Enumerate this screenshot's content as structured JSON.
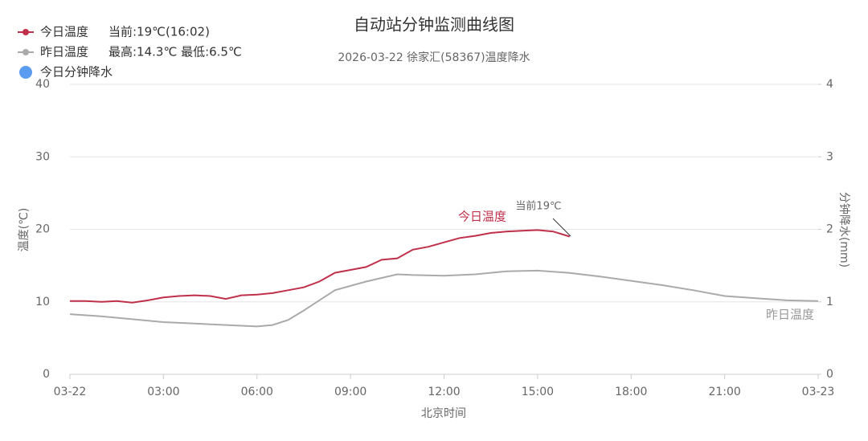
{
  "chart_data": {
    "type": "line",
    "title": "自动站分钟监测曲线图",
    "subtitle": "2026-03-22 徐家汇(58367)温度降水",
    "x_label": "北京时间",
    "y_label": "温度(℃)",
    "y2_label": "分钟降水(mm)",
    "legend_notes": [
      "当前:19℃(16:02)",
      "最高:14.3℃ 最低:6.5℃"
    ],
    "annotations": [
      "今日温度",
      "当前19℃",
      "昨日温度"
    ],
    "xlim": [
      0,
      24
    ],
    "xticks": [
      {
        "value": 0,
        "label": "03-22"
      },
      {
        "value": 3,
        "label": "03:00"
      },
      {
        "value": 6,
        "label": "06:00"
      },
      {
        "value": 9,
        "label": "09:00"
      },
      {
        "value": 12,
        "label": "12:00"
      },
      {
        "value": 15,
        "label": "15:00"
      },
      {
        "value": 18,
        "label": "18:00"
      },
      {
        "value": 21,
        "label": "21:00"
      },
      {
        "value": 24,
        "label": "03-23"
      }
    ],
    "ylim": [
      0,
      40
    ],
    "yticks": [
      0,
      10,
      20,
      30,
      40
    ],
    "y2lim": [
      0,
      4
    ],
    "y2ticks": [
      0,
      1,
      2,
      3,
      4
    ],
    "grid": true,
    "series": [
      {
        "name": "今日温度",
        "color": "#c0304a",
        "x": [
          0,
          0.5,
          1,
          1.5,
          2,
          2.5,
          3,
          3.5,
          4,
          4.5,
          5,
          5.5,
          6,
          6.5,
          7,
          7.5,
          8,
          8.5,
          9,
          9.5,
          10,
          10.5,
          11,
          11.5,
          12,
          12.5,
          13,
          13.5,
          14,
          14.5,
          15,
          15.5,
          16.03
        ],
        "values": [
          10.1,
          10.1,
          10.0,
          10.1,
          9.9,
          10.2,
          10.6,
          10.8,
          10.9,
          10.8,
          10.4,
          10.9,
          11.0,
          11.2,
          11.6,
          12.0,
          12.8,
          14.0,
          14.4,
          14.8,
          15.8,
          16.0,
          17.2,
          17.6,
          18.2,
          18.8,
          19.1,
          19.5,
          19.7,
          19.8,
          19.9,
          19.7,
          19.0
        ]
      },
      {
        "name": "昨日温度",
        "color": "#aaaaaa",
        "x": [
          0,
          1,
          2,
          3,
          4,
          5,
          6,
          6.5,
          7,
          7.5,
          8,
          8.5,
          9,
          9.5,
          10,
          10.5,
          11,
          12,
          13,
          14,
          15,
          16,
          17,
          18,
          19,
          20,
          21,
          22,
          23,
          24
        ],
        "values": [
          8.3,
          8.0,
          7.6,
          7.2,
          7.0,
          6.8,
          6.6,
          6.8,
          7.5,
          8.8,
          10.2,
          11.6,
          12.2,
          12.8,
          13.3,
          13.8,
          13.7,
          13.6,
          13.8,
          14.2,
          14.3,
          14.0,
          13.5,
          12.9,
          12.3,
          11.6,
          10.8,
          10.5,
          10.2,
          10.1
        ]
      },
      {
        "name": "今日分钟降水",
        "color": "#5b9cf0",
        "axis": "y2",
        "x": [],
        "values": []
      }
    ]
  }
}
